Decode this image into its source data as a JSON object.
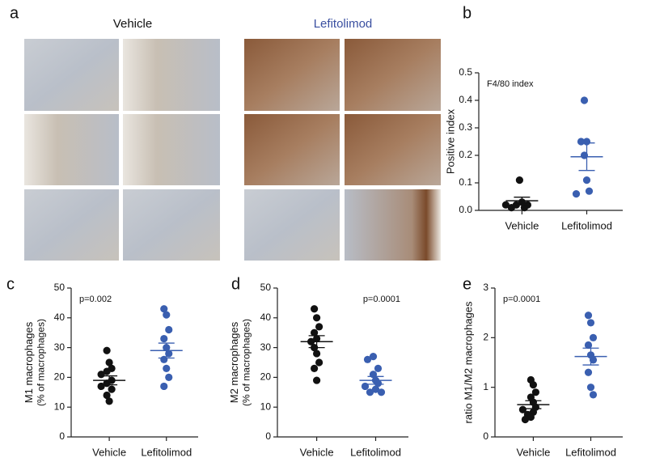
{
  "panel_a": {
    "label": "a",
    "groups": [
      "Vehicle",
      "Lefitolimod"
    ],
    "group_colors": [
      "#111111",
      "#3a4fa0"
    ]
  },
  "chart_data": [
    {
      "type": "dotplot",
      "panel": "b",
      "ylabel": [
        "Positive index"
      ],
      "annotation": "F4/80 index",
      "categories": [
        "Vehicle",
        "Lefitolimod"
      ],
      "groups": [
        {
          "color": "#111111",
          "values": [
            0.11,
            0.03,
            0.02,
            0.02,
            0.02,
            0.01,
            0.01
          ],
          "mean": 0.035,
          "sem": 0.013
        },
        {
          "color": "#3a5fb0",
          "values": [
            0.4,
            0.25,
            0.25,
            0.2,
            0.11,
            0.07,
            0.06
          ],
          "mean": 0.195,
          "sem": 0.05
        }
      ],
      "ylim": [
        0,
        0.5
      ],
      "yticks": [
        {
          "value": 0,
          "label": "0.0"
        },
        0.1,
        0.2,
        0.3,
        0.4,
        0.5
      ]
    },
    {
      "type": "dotplot",
      "panel": "c",
      "ylabel": [
        "M1 macrophages",
        "(% of macrophages)"
      ],
      "annotation": "p=0.002",
      "categories": [
        "Vehicle",
        "Lefitolimod"
      ],
      "groups": [
        {
          "color": "#111111",
          "values": [
            29,
            25,
            23,
            22,
            21,
            19,
            18,
            17,
            16,
            14,
            12
          ],
          "mean": 19,
          "sem": 1.5
        },
        {
          "color": "#3a5fb0",
          "values": [
            43,
            41,
            36,
            33,
            30,
            28,
            26,
            23,
            20,
            17
          ],
          "mean": 29,
          "sem": 2.5
        }
      ],
      "ylim": [
        0,
        50
      ],
      "yticks": [
        0,
        10,
        20,
        30,
        40,
        50
      ]
    },
    {
      "type": "dotplot",
      "panel": "d",
      "ylabel": [
        "M2 macrophages",
        "(% of macrophages)"
      ],
      "annotation": "p=0.0001",
      "categories": [
        "Vehicle",
        "Lefitolimod"
      ],
      "groups": [
        {
          "color": "#111111",
          "values": [
            43,
            40,
            37,
            35,
            33,
            32,
            30,
            28,
            25,
            23,
            19
          ],
          "mean": 32,
          "sem": 2
        },
        {
          "color": "#3a5fb0",
          "values": [
            27,
            26,
            23,
            21,
            19,
            18,
            17,
            16,
            15,
            15
          ],
          "mean": 19,
          "sem": 1.3
        }
      ],
      "ylim": [
        0,
        50
      ],
      "yticks": [
        0,
        10,
        20,
        30,
        40,
        50
      ]
    },
    {
      "type": "dotplot",
      "panel": "e",
      "ylabel": [
        "ratio M1/M2 macrophages"
      ],
      "annotation": "p=0.0001",
      "categories": [
        "Vehicle",
        "Lefitolimod"
      ],
      "groups": [
        {
          "color": "#111111",
          "values": [
            1.15,
            1.05,
            0.9,
            0.8,
            0.7,
            0.6,
            0.55,
            0.5,
            0.45,
            0.4,
            0.35
          ],
          "mean": 0.65,
          "sem": 0.08
        },
        {
          "color": "#3a5fb0",
          "values": [
            2.45,
            2.3,
            2.0,
            1.85,
            1.65,
            1.55,
            1.3,
            1.0,
            0.85
          ],
          "mean": 1.62,
          "sem": 0.17
        }
      ],
      "ylim": [
        0,
        3
      ],
      "yticks": [
        0,
        1,
        2,
        3
      ]
    }
  ]
}
